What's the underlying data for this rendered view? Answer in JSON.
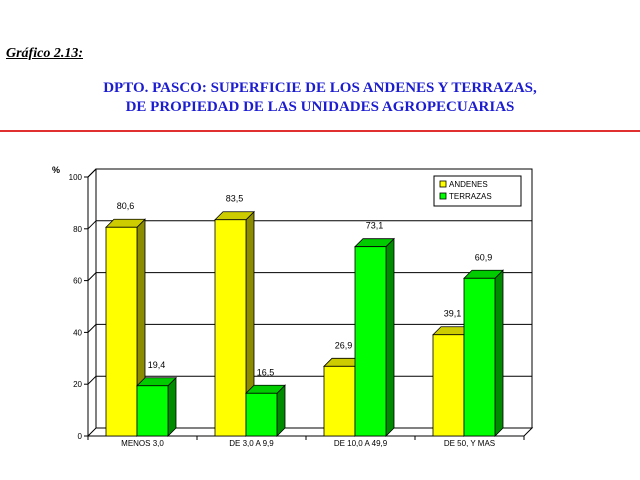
{
  "caption": "Gráfico  2.13:",
  "title_line1": "DPTO. PASCO: SUPERFICIE DE LOS ANDENES Y TERRAZAS,",
  "title_line2": "DE PROPIEDAD DE LAS UNIDADES AGROPECUARIAS",
  "colors": {
    "title": "#1c1cd0",
    "rule": "#e03030",
    "andenes": "#ffff00",
    "terrazas": "#00ff00"
  },
  "chart_data": {
    "type": "bar",
    "ylabel": "%",
    "ylim": [
      0,
      100
    ],
    "yticks": [
      0,
      20,
      40,
      60,
      80,
      100
    ],
    "grid": true,
    "legend_position": "top-right",
    "categories": [
      "MENOS  3,0",
      "DE 3,0 A 9,9",
      "DE 10,0 A 49,9",
      "DE 50, Y MAS"
    ],
    "series": [
      {
        "name": "ANDENES",
        "values": [
          80.6,
          83.5,
          26.9,
          39.1
        ],
        "labels": [
          "80,6",
          "83,5",
          "26,9",
          "39,1"
        ]
      },
      {
        "name": "TERRAZAS",
        "values": [
          19.4,
          16.5,
          73.1,
          60.9
        ],
        "labels": [
          "19,4",
          "16,5",
          "73,1",
          "60,9"
        ]
      }
    ]
  }
}
